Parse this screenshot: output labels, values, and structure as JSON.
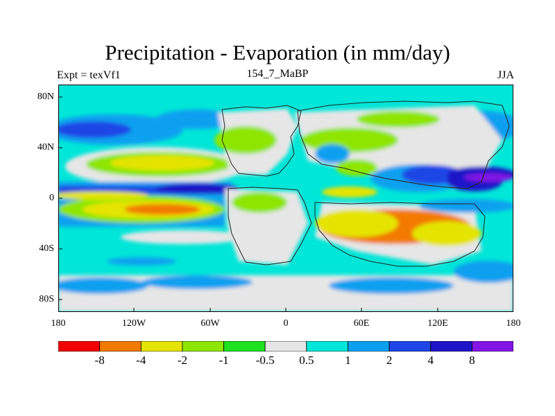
{
  "title": "Precipitation - Evaporation (in mm/day)",
  "left_label": "Expt = texVf1",
  "center_label": "154_7_MaBP",
  "right_label": "JJA",
  "lat_ticks": [
    "80N",
    "40N",
    "0",
    "40S",
    "80S"
  ],
  "lon_ticks": [
    "180",
    "120W",
    "60W",
    "0",
    "60E",
    "120E",
    "180"
  ],
  "colorbar": {
    "colors": [
      "#f00000",
      "#f27a00",
      "#e4e400",
      "#8ee600",
      "#1ee21e",
      "#e6e6e6",
      "#00e6d8",
      "#0aa0f0",
      "#1e46e6",
      "#1e14c8",
      "#8214e6"
    ],
    "labels": [
      "-8",
      "-4",
      "-2",
      "-1",
      "-0.5",
      "0.5",
      "1",
      "2",
      "4",
      "8"
    ]
  }
}
